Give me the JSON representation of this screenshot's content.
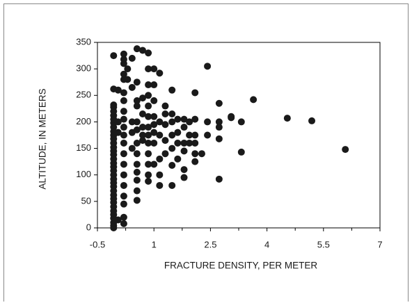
{
  "chart_data": {
    "type": "scatter",
    "xlabel": "FRACTURE DENSITY, PER METER",
    "ylabel": "ALTITUDE, IN METERS",
    "color": "#1a1a1a",
    "xlim": [
      -0.5,
      7
    ],
    "xticks": [
      -0.5,
      1,
      2.5,
      4,
      5.5,
      7
    ],
    "xminorticks": [
      0.25,
      1.75,
      3.25,
      4.75,
      6.25
    ],
    "ylim": [
      0,
      350
    ],
    "yticks": [
      0,
      50,
      100,
      150,
      200,
      250,
      300,
      350
    ],
    "x": [
      -0.07,
      -0.07,
      -0.07,
      -0.07,
      -0.07,
      -0.07,
      -0.07,
      -0.07,
      -0.07,
      -0.07,
      -0.07,
      -0.07,
      -0.07,
      -0.07,
      -0.07,
      -0.07,
      -0.07,
      -0.07,
      -0.07,
      -0.07,
      -0.07,
      -0.07,
      -0.07,
      -0.07,
      -0.07,
      -0.07,
      -0.07,
      -0.07,
      -0.07,
      -0.07,
      -0.07,
      -0.07,
      -0.07,
      -0.07,
      -0.07,
      0.05,
      0.05,
      0.05,
      0.05,
      0.2,
      0.2,
      0.2,
      0.2,
      0.2,
      0.2,
      0.2,
      0.2,
      0.2,
      0.2,
      0.2,
      0.2,
      0.2,
      0.2,
      0.2,
      0.2,
      0.2,
      0.2,
      0.2,
      0.2,
      0.3,
      0.3,
      0.42,
      0.42,
      0.42,
      0.42,
      0.42,
      0.55,
      0.55,
      0.55,
      0.55,
      0.55,
      0.55,
      0.55,
      0.55,
      0.55,
      0.55,
      0.55,
      0.55,
      0.55,
      0.7,
      0.7,
      0.7,
      0.7,
      0.7,
      0.7,
      0.85,
      0.85,
      0.85,
      0.85,
      0.85,
      0.85,
      0.85,
      0.85,
      0.85,
      0.85,
      0.85,
      0.85,
      0.85,
      1.0,
      1.0,
      1.0,
      1.0,
      1.0,
      1.0,
      1.0,
      1.0,
      1.15,
      1.15,
      1.15,
      1.15,
      1.15,
      1.15,
      1.3,
      1.3,
      1.3,
      1.3,
      1.3,
      1.48,
      1.48,
      1.48,
      1.48,
      1.48,
      1.48,
      1.48,
      1.63,
      1.63,
      1.63,
      1.63,
      1.8,
      1.8,
      1.8,
      1.8,
      1.8,
      1.8,
      1.94,
      1.94,
      1.94,
      2.09,
      2.09,
      2.09,
      2.09,
      2.09,
      2.09,
      2.27,
      2.42,
      2.42,
      2.42,
      2.73,
      2.73,
      2.73,
      2.73,
      2.73,
      3.05,
      3.05,
      3.32,
      3.32,
      3.64,
      4.54,
      5.19,
      6.08
    ],
    "values": [
      0,
      4,
      10,
      18,
      25,
      32,
      40,
      48,
      55,
      62,
      70,
      78,
      85,
      92,
      100,
      108,
      115,
      122,
      130,
      138,
      145,
      152,
      160,
      168,
      175,
      182,
      190,
      198,
      205,
      212,
      220,
      228,
      232,
      262,
      325,
      15,
      180,
      200,
      260,
      8,
      20,
      45,
      60,
      80,
      100,
      120,
      140,
      160,
      175,
      190,
      205,
      220,
      240,
      255,
      280,
      290,
      310,
      318,
      328,
      300,
      280,
      320,
      265,
      200,
      180,
      150,
      338,
      275,
      240,
      230,
      200,
      185,
      160,
      140,
      120,
      105,
      90,
      70,
      52,
      335,
      245,
      215,
      190,
      175,
      165,
      330,
      300,
      270,
      250,
      230,
      210,
      190,
      175,
      160,
      140,
      120,
      100,
      88,
      300,
      270,
      240,
      210,
      195,
      180,
      160,
      120,
      292,
      200,
      175,
      130,
      100,
      80,
      230,
      215,
      195,
      165,
      140,
      260,
      215,
      200,
      175,
      150,
      118,
      80,
      205,
      180,
      160,
      130,
      205,
      190,
      160,
      145,
      110,
      95,
      200,
      175,
      160,
      255,
      205,
      175,
      160,
      140,
      125,
      140,
      305,
      200,
      175,
      235,
      200,
      190,
      168,
      92,
      210,
      208,
      200,
      143,
      242,
      207,
      202,
      148
    ]
  }
}
